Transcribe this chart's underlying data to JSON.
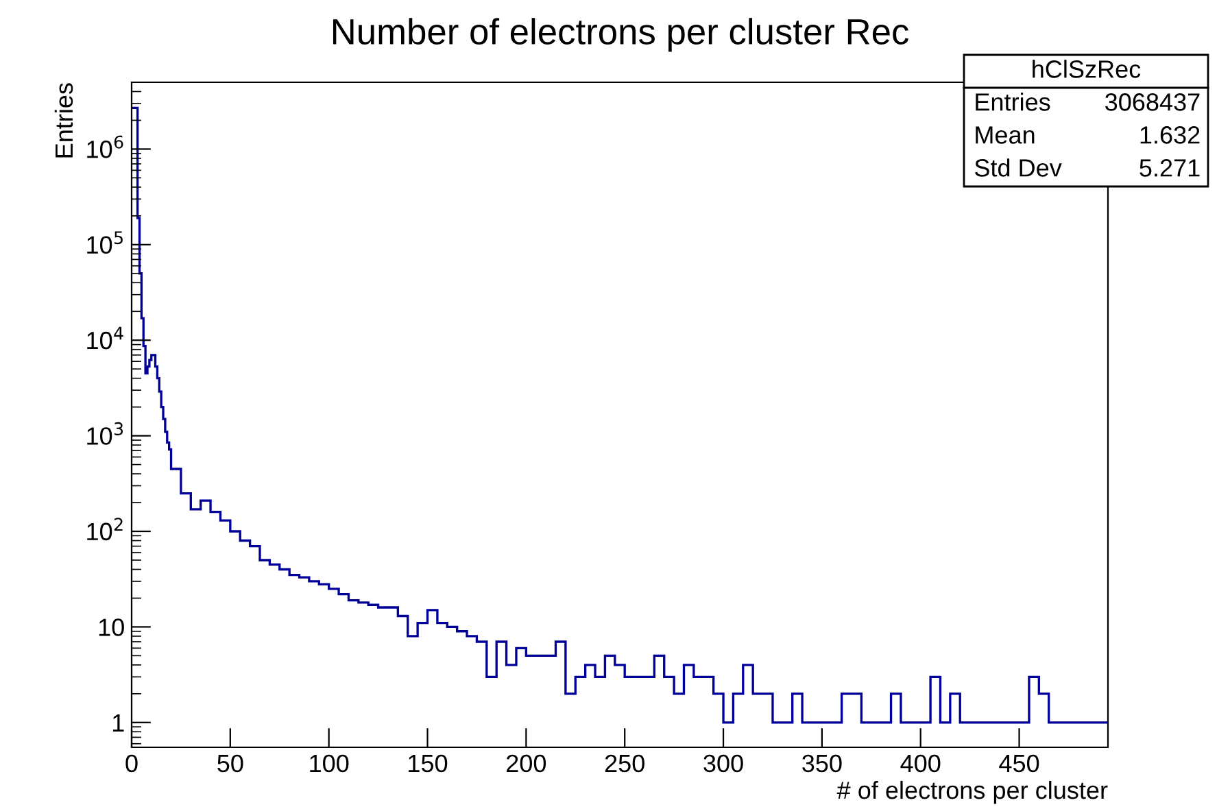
{
  "chart_data": {
    "type": "histogram",
    "title": "Number of electrons per cluster Rec",
    "xlabel": "# of electrons per cluster",
    "ylabel": "Entries",
    "bins": [
      0,
      1,
      2,
      3,
      4,
      5,
      6,
      7,
      8,
      9,
      10,
      11,
      12,
      13,
      14,
      15,
      16,
      17,
      18,
      19,
      20,
      25,
      30,
      35,
      40,
      45,
      50,
      55,
      60,
      65,
      70,
      75,
      80,
      85,
      90,
      95,
      100,
      105,
      110,
      115,
      120,
      125,
      130,
      135,
      140,
      145,
      150,
      155,
      160,
      165,
      170,
      175,
      180,
      185,
      190,
      195,
      200,
      205,
      210,
      215,
      220,
      225,
      230,
      235,
      240,
      245,
      250,
      255,
      260,
      265,
      270,
      275,
      280,
      285,
      290,
      295,
      300,
      305,
      310,
      315,
      320,
      325,
      330,
      335,
      340,
      345,
      350,
      355,
      360,
      365,
      370,
      375,
      380,
      385,
      390,
      395,
      400,
      405,
      410,
      415,
      420,
      425,
      430,
      435,
      440,
      445,
      450,
      455,
      460,
      465,
      470,
      475,
      480,
      485,
      490,
      495
    ],
    "values": [
      2700000,
      2700000,
      2700000,
      190000,
      50000,
      17000,
      8700,
      4500,
      5300,
      6200,
      7000,
      7000,
      5300,
      4000,
      2900,
      2000,
      1500,
      1100,
      850,
      720,
      450,
      250,
      170,
      210,
      160,
      130,
      100,
      80,
      70,
      50,
      45,
      40,
      35,
      33,
      30,
      28,
      25,
      22,
      19,
      18,
      17,
      16,
      16,
      13,
      8,
      11,
      15,
      11,
      10,
      9,
      8,
      7,
      3,
      7,
      4,
      6,
      5,
      5,
      5,
      7,
      2,
      3,
      4,
      3,
      5,
      4,
      3,
      3,
      3,
      5,
      3,
      2,
      4,
      3,
      3,
      2,
      1,
      2,
      4,
      2,
      2,
      1,
      1,
      2,
      1,
      1,
      1,
      1,
      2,
      2,
      1,
      1,
      1,
      2,
      1,
      1,
      1,
      3,
      1,
      2,
      1,
      1,
      1,
      1,
      1,
      1,
      1,
      3,
      2,
      1,
      1,
      1,
      1,
      1,
      1
    ],
    "color": "#000099",
    "log": "y",
    "xlim": [
      0,
      495
    ],
    "ylim": [
      0.55,
      5000000
    ],
    "xticks": [
      0,
      50,
      100,
      150,
      200,
      250,
      300,
      350,
      400,
      450
    ],
    "yticks": [
      1,
      10,
      {
        "value": 100,
        "label": "10$^{2}$"
      },
      {
        "value": 1000,
        "label": "10$^{3}$"
      },
      {
        "value": 10000,
        "label": "10$^{4}$"
      },
      {
        "value": 100000,
        "label": "10$^{5}$"
      },
      {
        "value": 1000000,
        "label": "10$^{6}$"
      }
    ],
    "grid": false,
    "annotations": [
      "hClSzRec",
      "Entries",
      "3068437",
      "Mean",
      "1.632",
      "Std Dev",
      "5.271"
    ]
  }
}
